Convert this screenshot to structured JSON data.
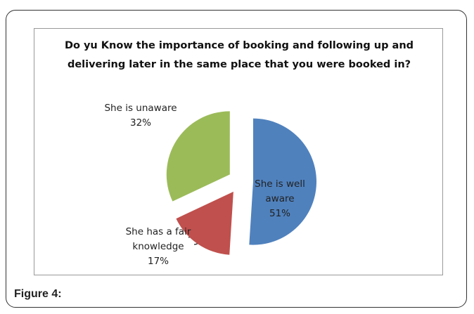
{
  "chart_data": {
    "type": "pie",
    "title": "Do yu Know the importance of booking and following up and delivering later in the same place that you were booked in?",
    "categories": [
      "She is well aware",
      "She has a fair knowledge",
      "She is unaware"
    ],
    "values": [
      51,
      17,
      32
    ],
    "value_labels": [
      "51%",
      "17%",
      "32%"
    ],
    "colors": [
      "#4f81bd",
      "#c0504d",
      "#9bbb59"
    ],
    "exploded": true
  },
  "caption": "Figure 4:"
}
